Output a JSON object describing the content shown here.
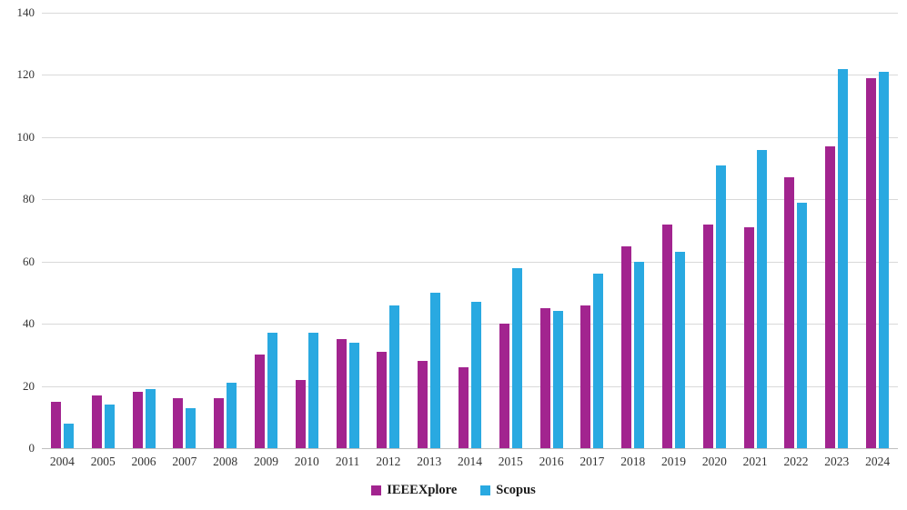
{
  "chart_data": {
    "type": "bar",
    "title": "",
    "xlabel": "",
    "ylabel": "",
    "ylim": [
      0,
      140
    ],
    "ytick_step": 20,
    "yticks": [
      0,
      20,
      40,
      60,
      80,
      100,
      120,
      140
    ],
    "grid": true,
    "legend_position": "bottom",
    "categories": [
      "2004",
      "2005",
      "2006",
      "2007",
      "2008",
      "2009",
      "2010",
      "2011",
      "2012",
      "2013",
      "2014",
      "2015",
      "2016",
      "2017",
      "2018",
      "2019",
      "2020",
      "2021",
      "2022",
      "2023",
      "2024"
    ],
    "series": [
      {
        "name": "IEEEXplore",
        "color": "#A2248F",
        "values": [
          15,
          17,
          18,
          16,
          16,
          30,
          22,
          35,
          31,
          28,
          26,
          40,
          45,
          46,
          65,
          72,
          72,
          71,
          87,
          97,
          119
        ]
      },
      {
        "name": "Scopus",
        "color": "#29A9E1",
        "values": [
          8,
          14,
          19,
          13,
          21,
          37,
          37,
          34,
          46,
          50,
          47,
          58,
          44,
          56,
          60,
          63,
          91,
          96,
          79,
          122,
          121
        ]
      }
    ]
  },
  "colors": {
    "gridline": "#d9d9d9",
    "axis_text": "#333333",
    "background": "#ffffff"
  }
}
